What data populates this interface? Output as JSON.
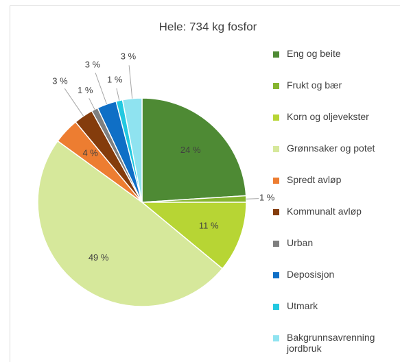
{
  "chart_data": {
    "type": "pie",
    "title": "Hele: 734 kg fosfor",
    "categories": [
      "Eng og beite",
      "Frukt og bær",
      "Korn og oljevekster",
      "Grønnsaker og potet",
      "Spredt avløp",
      "Kommunalt avløp",
      "Urban",
      "Deposisjon",
      "Utmark",
      "Bakgrunnsavrenning jordbruk"
    ],
    "values": [
      24,
      1,
      11,
      49,
      4,
      3,
      1,
      3,
      1,
      3
    ],
    "value_labels": [
      "24 %",
      "1 %",
      "11 %",
      "49 %",
      "4 %",
      "3 %",
      "1 %",
      "3 %",
      "1 %",
      "3 %"
    ],
    "colors": [
      "#4e8a34",
      "#86b52f",
      "#b7d534",
      "#d6e89b",
      "#ed7d31",
      "#843c0c",
      "#7f7f7f",
      "#0f6fc6",
      "#22c8e0",
      "#8fe3f0"
    ],
    "legend": "right"
  }
}
